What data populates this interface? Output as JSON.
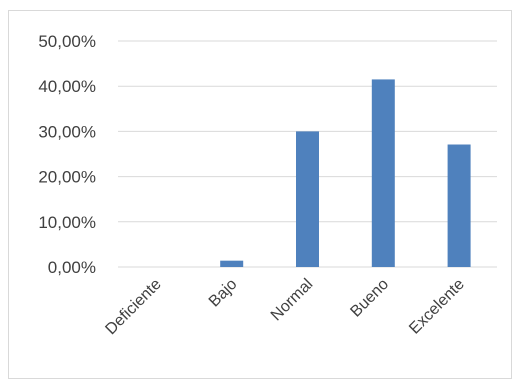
{
  "chart_data": {
    "type": "bar",
    "categories": [
      "Deficiente",
      "Bajo",
      "Normal",
      "Bueno",
      "Excelente"
    ],
    "values": [
      0.0,
      1.4,
      30.0,
      41.5,
      27.1
    ],
    "ylim": [
      0,
      50
    ],
    "yticks": [
      "0,00%",
      "10,00%",
      "20,00%",
      "30,00%",
      "40,00%",
      "50,00%"
    ],
    "grid": true,
    "legend": "none",
    "bar_color": "#4f81bd",
    "grid_color": "#d9d9d9"
  }
}
